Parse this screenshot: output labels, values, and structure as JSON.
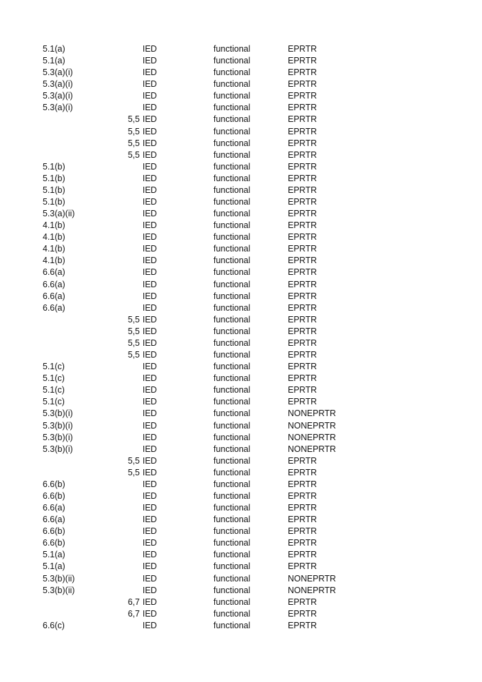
{
  "table": {
    "rows": [
      [
        "5.1(a)",
        "",
        "IED",
        "functional",
        "EPRTR"
      ],
      [
        "5.1(a)",
        "",
        "IED",
        "functional",
        "EPRTR"
      ],
      [
        "5.3(a)(i)",
        "",
        "IED",
        "functional",
        "EPRTR"
      ],
      [
        "5.3(a)(i)",
        "",
        "IED",
        "functional",
        "EPRTR"
      ],
      [
        "5.3(a)(i)",
        "",
        "IED",
        "functional",
        "EPRTR"
      ],
      [
        "5.3(a)(i)",
        "",
        "IED",
        "functional",
        "EPRTR"
      ],
      [
        "",
        "5,5",
        "IED",
        "functional",
        "EPRTR"
      ],
      [
        "",
        "5,5",
        "IED",
        "functional",
        "EPRTR"
      ],
      [
        "",
        "5,5",
        "IED",
        "functional",
        "EPRTR"
      ],
      [
        "",
        "5,5",
        "IED",
        "functional",
        "EPRTR"
      ],
      [
        "5.1(b)",
        "",
        "IED",
        "functional",
        "EPRTR"
      ],
      [
        "5.1(b)",
        "",
        "IED",
        "functional",
        "EPRTR"
      ],
      [
        "5.1(b)",
        "",
        "IED",
        "functional",
        "EPRTR"
      ],
      [
        "5.1(b)",
        "",
        "IED",
        "functional",
        "EPRTR"
      ],
      [
        "5.3(a)(ii)",
        "",
        "IED",
        "functional",
        "EPRTR"
      ],
      [
        "4.1(b)",
        "",
        "IED",
        "functional",
        "EPRTR"
      ],
      [
        "4.1(b)",
        "",
        "IED",
        "functional",
        "EPRTR"
      ],
      [
        "4.1(b)",
        "",
        "IED",
        "functional",
        "EPRTR"
      ],
      [
        "4.1(b)",
        "",
        "IED",
        "functional",
        "EPRTR"
      ],
      [
        "6.6(a)",
        "",
        "IED",
        "functional",
        "EPRTR"
      ],
      [
        "6.6(a)",
        "",
        "IED",
        "functional",
        "EPRTR"
      ],
      [
        "6.6(a)",
        "",
        "IED",
        "functional",
        "EPRTR"
      ],
      [
        "6.6(a)",
        "",
        "IED",
        "functional",
        "EPRTR"
      ],
      [
        "",
        "5,5",
        "IED",
        "functional",
        "EPRTR"
      ],
      [
        "",
        "5,5",
        "IED",
        "functional",
        "EPRTR"
      ],
      [
        "",
        "5,5",
        "IED",
        "functional",
        "EPRTR"
      ],
      [
        "",
        "5,5",
        "IED",
        "functional",
        "EPRTR"
      ],
      [
        "5.1(c)",
        "",
        "IED",
        "functional",
        "EPRTR"
      ],
      [
        "5.1(c)",
        "",
        "IED",
        "functional",
        "EPRTR"
      ],
      [
        "5.1(c)",
        "",
        "IED",
        "functional",
        "EPRTR"
      ],
      [
        "5.1(c)",
        "",
        "IED",
        "functional",
        "EPRTR"
      ],
      [
        "5.3(b)(i)",
        "",
        "IED",
        "functional",
        "NONEPRTR"
      ],
      [
        "5.3(b)(i)",
        "",
        "IED",
        "functional",
        "NONEPRTR"
      ],
      [
        "5.3(b)(i)",
        "",
        "IED",
        "functional",
        "NONEPRTR"
      ],
      [
        "5.3(b)(i)",
        "",
        "IED",
        "functional",
        "NONEPRTR"
      ],
      [
        "",
        "5,5",
        "IED",
        "functional",
        "EPRTR"
      ],
      [
        "",
        "5,5",
        "IED",
        "functional",
        "EPRTR"
      ],
      [
        "6.6(b)",
        "",
        "IED",
        "functional",
        "EPRTR"
      ],
      [
        "6.6(b)",
        "",
        "IED",
        "functional",
        "EPRTR"
      ],
      [
        "6.6(a)",
        "",
        "IED",
        "functional",
        "EPRTR"
      ],
      [
        "6.6(a)",
        "",
        "IED",
        "functional",
        "EPRTR"
      ],
      [
        "6.6(b)",
        "",
        "IED",
        "functional",
        "EPRTR"
      ],
      [
        "6.6(b)",
        "",
        "IED",
        "functional",
        "EPRTR"
      ],
      [
        "5.1(a)",
        "",
        "IED",
        "functional",
        "EPRTR"
      ],
      [
        "5.1(a)",
        "",
        "IED",
        "functional",
        "EPRTR"
      ],
      [
        "5.3(b)(ii)",
        "",
        "IED",
        "functional",
        "NONEPRTR"
      ],
      [
        "5.3(b)(ii)",
        "",
        "IED",
        "functional",
        "NONEPRTR"
      ],
      [
        "",
        "6,7",
        "IED",
        "functional",
        "EPRTR"
      ],
      [
        "",
        "6,7",
        "IED",
        "functional",
        "EPRTR"
      ],
      [
        "6.6(c)",
        "",
        "IED",
        "functional",
        "EPRTR"
      ]
    ]
  }
}
